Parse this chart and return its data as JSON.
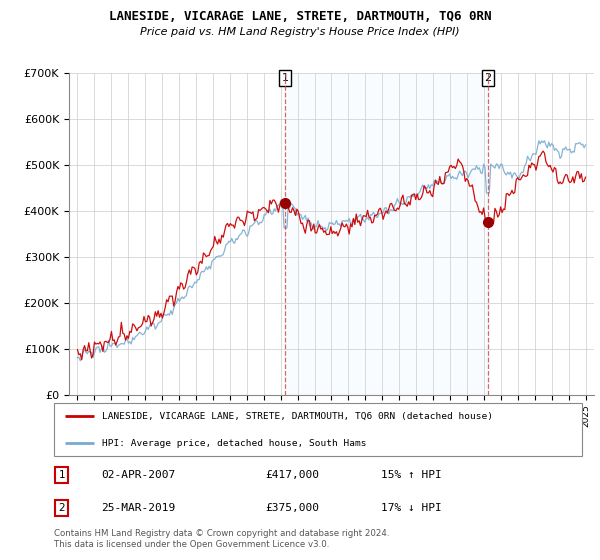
{
  "title": "LANESIDE, VICARAGE LANE, STRETE, DARTMOUTH, TQ6 0RN",
  "subtitle": "Price paid vs. HM Land Registry's House Price Index (HPI)",
  "legend_line1": "LANESIDE, VICARAGE LANE, STRETE, DARTMOUTH, TQ6 0RN (detached house)",
  "legend_line2": "HPI: Average price, detached house, South Hams",
  "sale1_date": "02-APR-2007",
  "sale1_price": 417000,
  "sale1_pct": "15% ↑ HPI",
  "sale2_date": "25-MAR-2019",
  "sale2_price": 375000,
  "sale2_pct": "17% ↓ HPI",
  "footer": "Contains HM Land Registry data © Crown copyright and database right 2024.\nThis data is licensed under the Open Government Licence v3.0.",
  "red_color": "#cc0000",
  "blue_color": "#7aabcf",
  "shade_color": "#ddeeff",
  "ylim": [
    0,
    700000
  ],
  "xlim_start": 1994.5,
  "xlim_end": 2025.5,
  "sale1_x": 2007.25,
  "sale2_x": 2019.25
}
